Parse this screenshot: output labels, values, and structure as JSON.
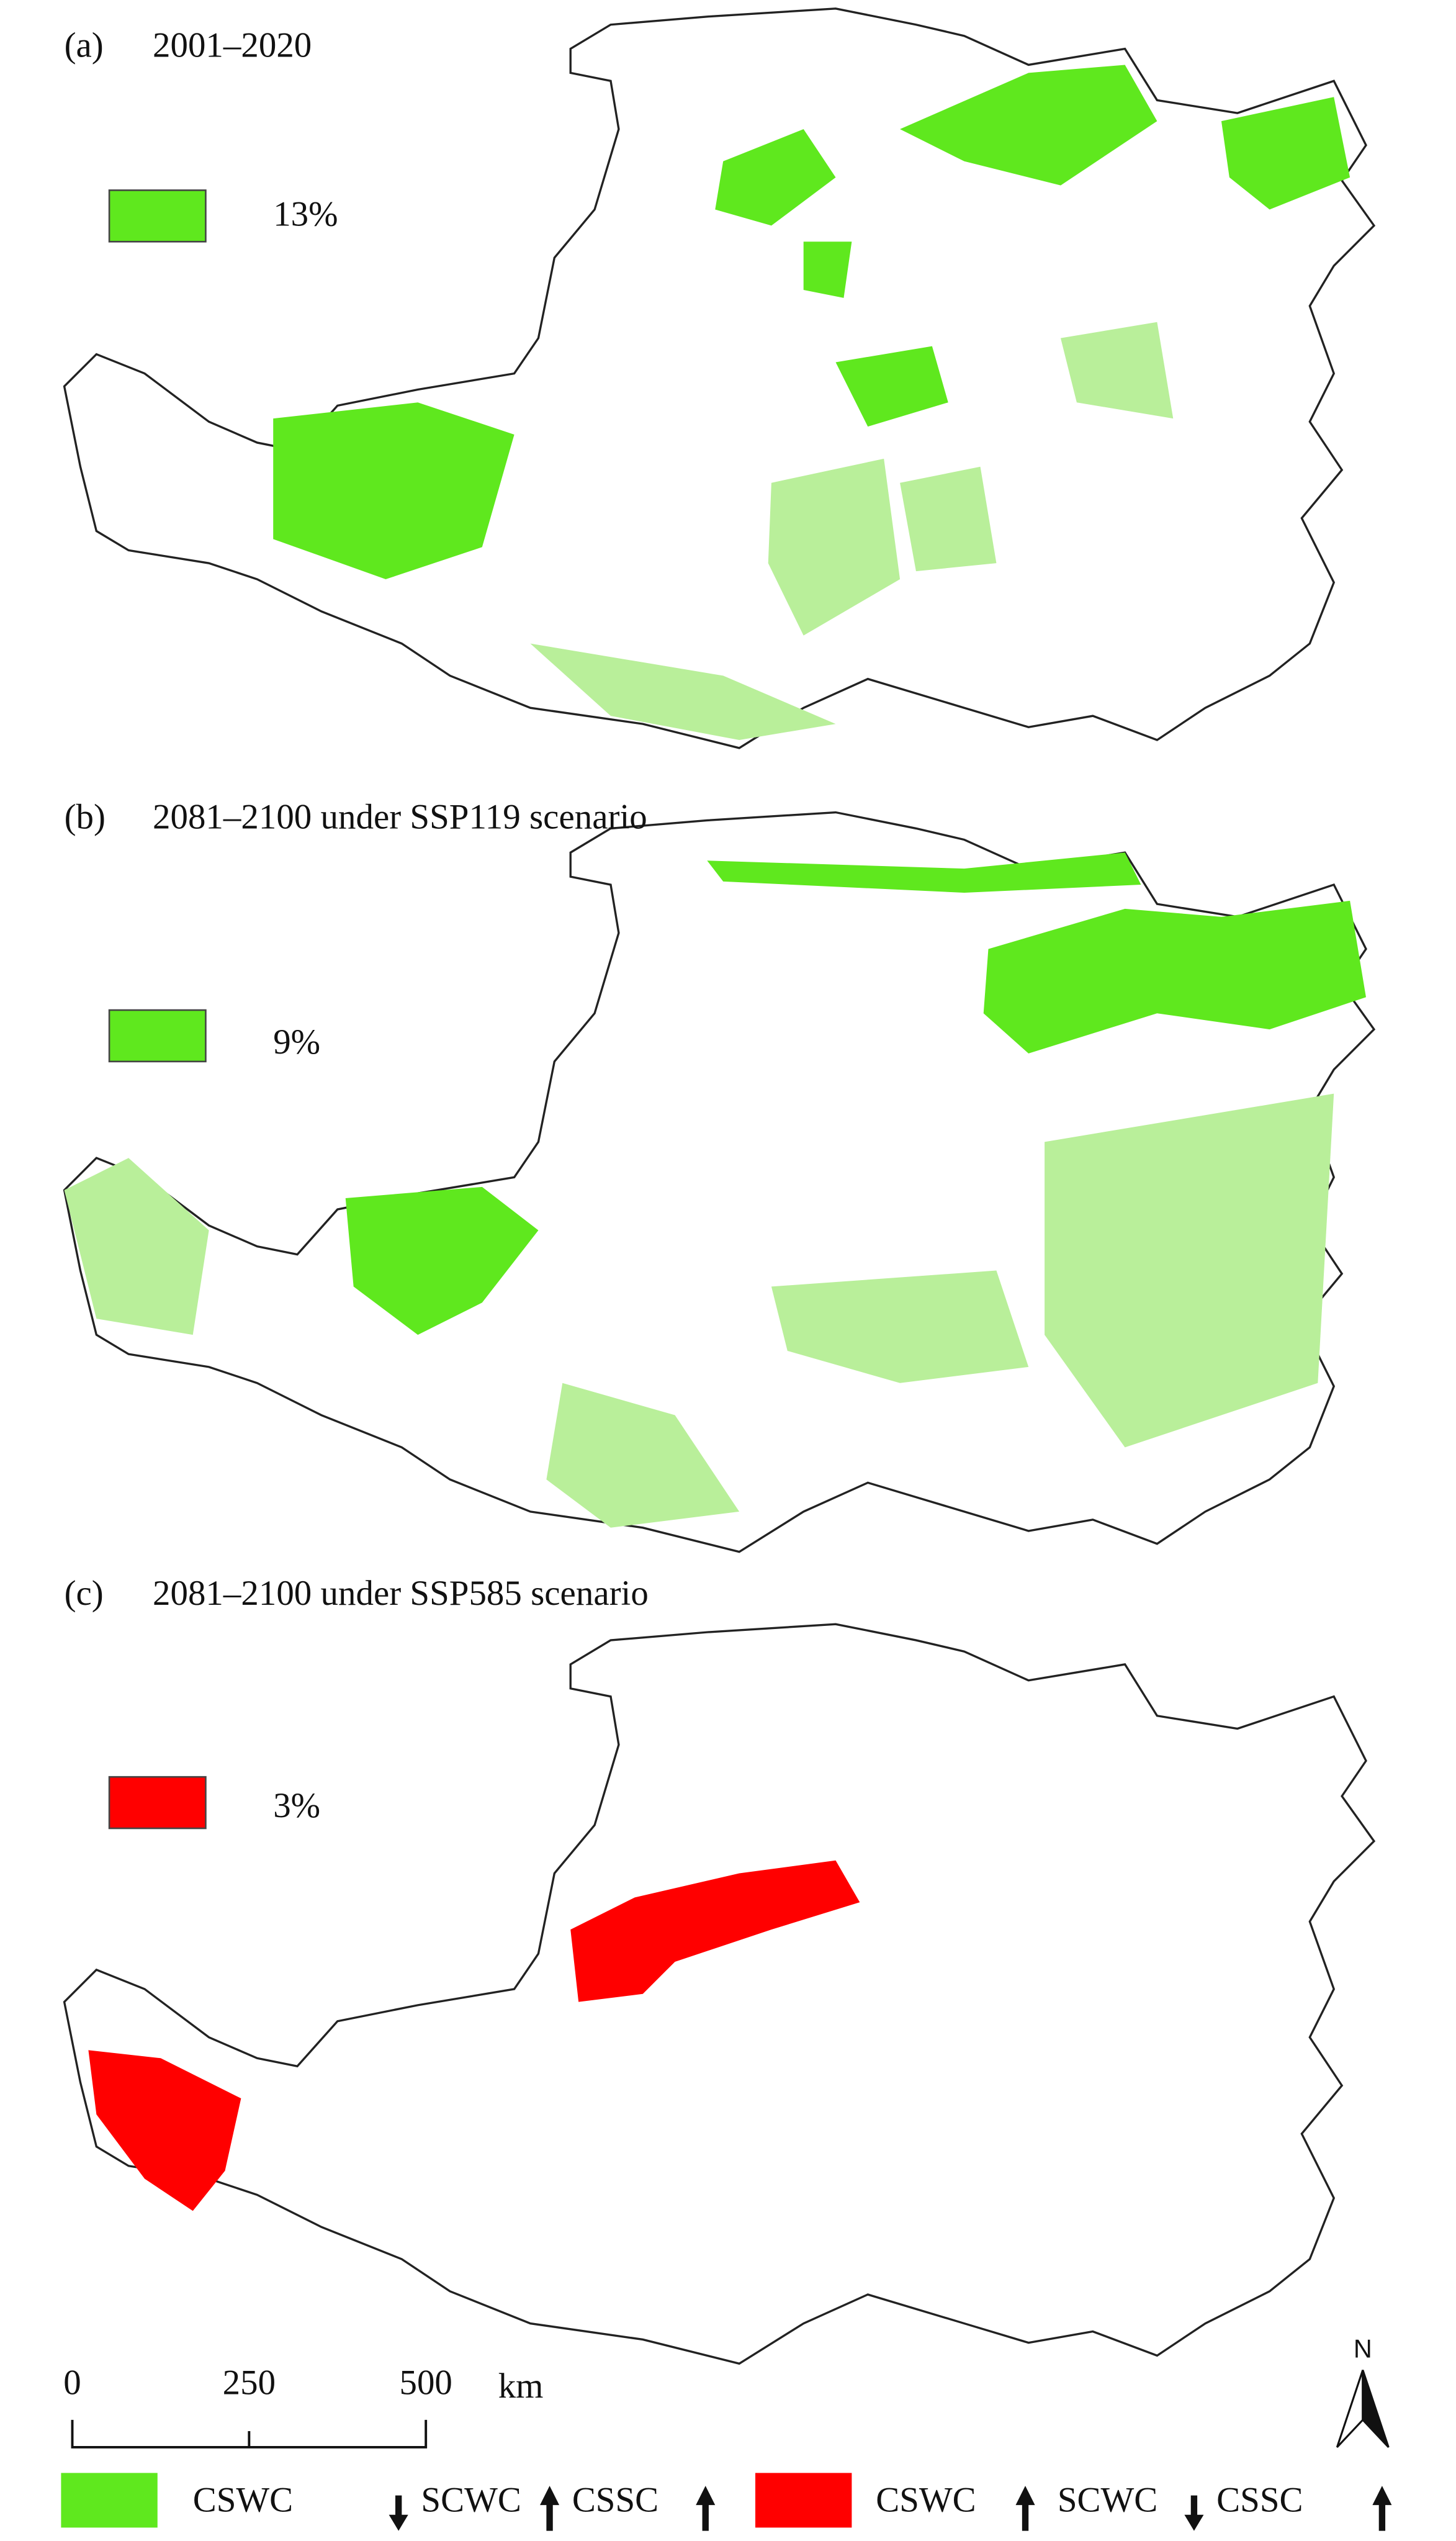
{
  "panels": [
    {
      "label": "(a)",
      "title": "2001–2020",
      "legend_value": "13%"
    },
    {
      "label": "(b)",
      "title": "2081–2100 under SSP119 scenario",
      "legend_value": "9%"
    },
    {
      "label": "(c)",
      "title": "2081–2100 under SSP585 scenario",
      "legend_value": "3%"
    }
  ],
  "scale_bar": {
    "ticks": [
      "0",
      "250",
      "500"
    ],
    "unit": "km"
  },
  "north": "N",
  "legend": [
    {
      "items": [
        "CSWC",
        "SCWC",
        "CSSC"
      ]
    },
    {
      "items": [
        "CSWC",
        "SCWC",
        "CSSC"
      ]
    }
  ]
}
